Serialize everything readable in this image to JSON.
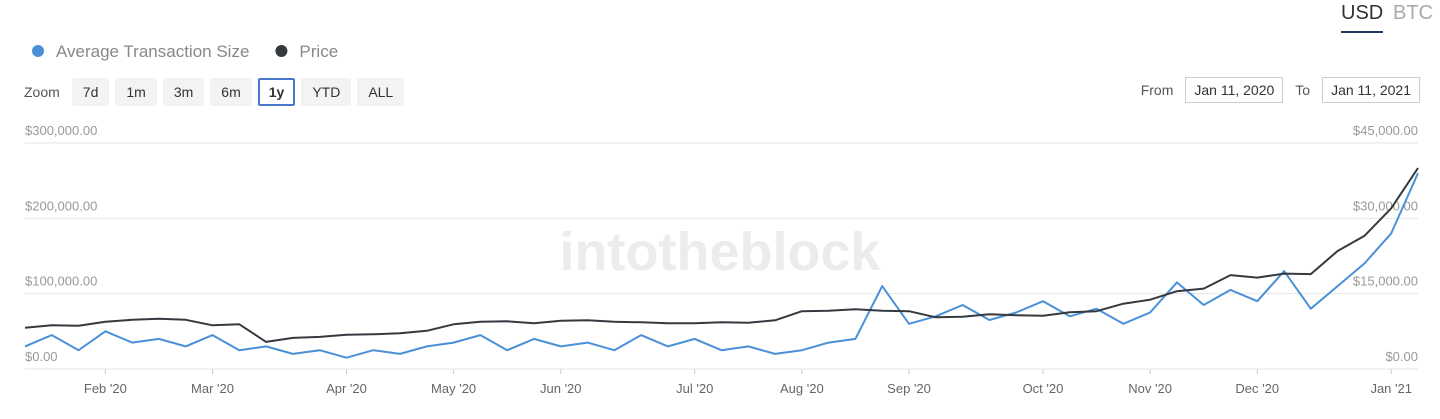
{
  "controls": {
    "currency": [
      "USD",
      "BTC"
    ],
    "currency_selected": 0,
    "zoom_label": "Zoom",
    "zoom": [
      "7d",
      "1m",
      "3m",
      "6m",
      "1y",
      "YTD",
      "ALL"
    ],
    "zoom_selected": 4,
    "from_label": "From",
    "from": "Jan 11, 2020",
    "to_label": "To",
    "to": "Jan 11, 2021"
  },
  "chart_data": {
    "type": "line",
    "watermark": "intotheblock",
    "categories": [
      null,
      null,
      null,
      "Feb '20",
      null,
      null,
      null,
      "Mar '20",
      null,
      null,
      null,
      null,
      "Apr '20",
      null,
      null,
      null,
      "May '20",
      null,
      null,
      null,
      "Jun '20",
      null,
      null,
      null,
      null,
      "Jul '20",
      null,
      null,
      null,
      "Aug '20",
      null,
      null,
      null,
      "Sep '20",
      null,
      null,
      null,
      null,
      "Oct '20",
      null,
      null,
      null,
      "Nov '20",
      null,
      null,
      null,
      "Dec '20",
      null,
      null,
      null,
      null,
      "Jan '21",
      null
    ],
    "series": [
      {
        "name": "Average Transaction Size",
        "color": "#4a90d9",
        "values": [
          30000,
          45000,
          25000,
          50000,
          35000,
          40000,
          30000,
          45000,
          25000,
          30000,
          20000,
          25000,
          15000,
          25000,
          20000,
          30000,
          35000,
          45000,
          25000,
          40000,
          30000,
          35000,
          25000,
          45000,
          30000,
          40000,
          25000,
          30000,
          20000,
          25000,
          35000,
          40000,
          110000,
          60000,
          70000,
          85000,
          65000,
          75000,
          90000,
          70000,
          80000,
          60000,
          75000,
          115000,
          85000,
          105000,
          90000,
          130000,
          80000,
          110000,
          140000,
          180000,
          260000
        ]
      },
      {
        "name": "Price",
        "color": "#343a40",
        "axis": "y2",
        "values": [
          8200,
          8700,
          8600,
          9400,
          9800,
          10000,
          9800,
          8700,
          8900,
          5400,
          6200,
          6400,
          6800,
          6900,
          7100,
          7600,
          8900,
          9400,
          9500,
          9100,
          9600,
          9700,
          9400,
          9300,
          9100,
          9100,
          9300,
          9200,
          9700,
          11500,
          11600,
          11900,
          11600,
          11500,
          10300,
          10400,
          10900,
          10700,
          10600,
          11300,
          11500,
          13000,
          13800,
          15500,
          16000,
          18700,
          18200,
          19000,
          18900,
          23500,
          26500,
          32000,
          40000
        ]
      }
    ],
    "ylim": [
      0,
      300000
    ],
    "yticks": [
      {
        "value": 0,
        "label": "$0.00"
      },
      {
        "value": 100000,
        "label": "$100,000.00"
      },
      {
        "value": 200000,
        "label": "$200,000.00"
      },
      {
        "value": 300000,
        "label": "$300,000.00"
      }
    ],
    "y2lim": [
      0,
      45000
    ],
    "y2ticks": [
      {
        "value": 0,
        "label": "$0.00"
      },
      {
        "value": 15000,
        "label": "$15,000.00"
      },
      {
        "value": 30000,
        "label": "$30,000.00"
      },
      {
        "value": 45000,
        "label": "$45,000.00"
      }
    ],
    "grid": true
  }
}
